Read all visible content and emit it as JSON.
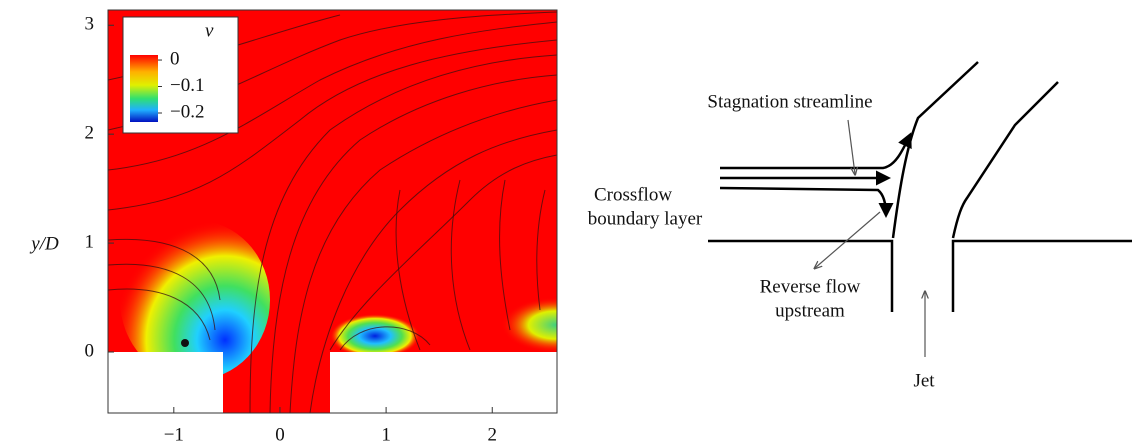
{
  "chart_data": {
    "type": "contour",
    "ylabel": "y/D",
    "xlim": [
      -1.62,
      2.61
    ],
    "ylim": [
      -0.56,
      3.14
    ],
    "xticks": [
      {
        "value": -1,
        "label": "−1"
      },
      0,
      1,
      2
    ],
    "yticks": [
      0,
      1,
      2,
      3
    ],
    "colorbar": {
      "label": "v",
      "clim": [
        -0.234,
        0.019
      ],
      "ticks": [
        0,
        {
          "value": -0.1,
          "label": "−0.1"
        },
        {
          "value": -0.2,
          "label": "−0.2"
        }
      ]
    }
  },
  "diagram": {
    "labels": [
      "Stagnation streamline",
      "Crossflow",
      "boundary layer",
      "Reverse flow",
      "upstream",
      "Jet"
    ]
  }
}
